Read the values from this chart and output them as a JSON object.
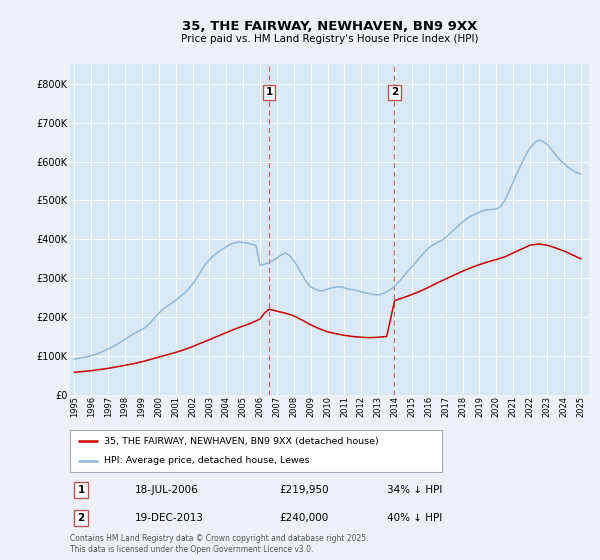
{
  "title": "35, THE FAIRWAY, NEWHAVEN, BN9 9XX",
  "subtitle": "Price paid vs. HM Land Registry's House Price Index (HPI)",
  "ylim": [
    0,
    850000
  ],
  "yticks": [
    0,
    100000,
    200000,
    300000,
    400000,
    500000,
    600000,
    700000,
    800000
  ],
  "ytick_labels": [
    "£0",
    "£100K",
    "£200K",
    "£300K",
    "£400K",
    "£500K",
    "£600K",
    "£700K",
    "£800K"
  ],
  "background_color": "#eef2f8",
  "plot_bg_color": "#d8e8f4",
  "grid_color": "#ffffff",
  "hpi_color": "#90b8d8",
  "price_color": "#cc0000",
  "dashed_line_color": "#cc6666",
  "legend_label_price": "35, THE FAIRWAY, NEWHAVEN, BN9 9XX (detached house)",
  "legend_label_hpi": "HPI: Average price, detached house, Lewes",
  "sale1_label": "1",
  "sale1_date": "18-JUL-2006",
  "sale1_price": "£219,950",
  "sale1_hpi": "34% ↓ HPI",
  "sale2_label": "2",
  "sale2_date": "19-DEC-2013",
  "sale2_price": "£240,000",
  "sale2_hpi": "40% ↓ HPI",
  "footer": "Contains HM Land Registry data © Crown copyright and database right 2025.\nThis data is licensed under the Open Government Licence v3.0.",
  "sale1_x": 2006.54,
  "sale2_x": 2013.96,
  "hpi_x": [
    1995.0,
    1995.25,
    1995.5,
    1995.75,
    1996.0,
    1996.25,
    1996.5,
    1996.75,
    1997.0,
    1997.25,
    1997.5,
    1997.75,
    1998.0,
    1998.25,
    1998.5,
    1998.75,
    1999.0,
    1999.25,
    1999.5,
    1999.75,
    2000.0,
    2000.25,
    2000.5,
    2000.75,
    2001.0,
    2001.25,
    2001.5,
    2001.75,
    2002.0,
    2002.25,
    2002.5,
    2002.75,
    2003.0,
    2003.25,
    2003.5,
    2003.75,
    2004.0,
    2004.25,
    2004.5,
    2004.75,
    2005.0,
    2005.25,
    2005.5,
    2005.75,
    2006.0,
    2006.25,
    2006.5,
    2006.75,
    2007.0,
    2007.25,
    2007.5,
    2007.75,
    2008.0,
    2008.25,
    2008.5,
    2008.75,
    2009.0,
    2009.25,
    2009.5,
    2009.75,
    2010.0,
    2010.25,
    2010.5,
    2010.75,
    2011.0,
    2011.25,
    2011.5,
    2011.75,
    2012.0,
    2012.25,
    2012.5,
    2012.75,
    2013.0,
    2013.25,
    2013.5,
    2013.75,
    2014.0,
    2014.25,
    2014.5,
    2014.75,
    2015.0,
    2015.25,
    2015.5,
    2015.75,
    2016.0,
    2016.25,
    2016.5,
    2016.75,
    2017.0,
    2017.25,
    2017.5,
    2017.75,
    2018.0,
    2018.25,
    2018.5,
    2018.75,
    2019.0,
    2019.25,
    2019.5,
    2019.75,
    2020.0,
    2020.25,
    2020.5,
    2020.75,
    2021.0,
    2021.25,
    2021.5,
    2021.75,
    2022.0,
    2022.25,
    2022.5,
    2022.75,
    2023.0,
    2023.25,
    2023.5,
    2023.75,
    2024.0,
    2024.25,
    2024.5,
    2024.75,
    2025.0
  ],
  "hpi_y": [
    92000,
    94000,
    96000,
    98000,
    101000,
    104000,
    108000,
    113000,
    118000,
    123000,
    129000,
    136000,
    143000,
    150000,
    157000,
    162000,
    168000,
    175000,
    185000,
    198000,
    210000,
    220000,
    228000,
    235000,
    243000,
    252000,
    261000,
    272000,
    285000,
    300000,
    318000,
    335000,
    348000,
    358000,
    367000,
    374000,
    381000,
    387000,
    391000,
    393000,
    392000,
    390000,
    387000,
    384000,
    333000,
    336000,
    340000,
    345000,
    352000,
    360000,
    365000,
    358000,
    345000,
    328000,
    308000,
    290000,
    278000,
    272000,
    268000,
    268000,
    272000,
    275000,
    277000,
    278000,
    275000,
    272000,
    270000,
    268000,
    265000,
    262000,
    260000,
    258000,
    257000,
    260000,
    265000,
    272000,
    280000,
    292000,
    305000,
    318000,
    330000,
    342000,
    355000,
    367000,
    378000,
    386000,
    392000,
    397000,
    405000,
    415000,
    425000,
    435000,
    445000,
    453000,
    460000,
    465000,
    470000,
    474000,
    476000,
    477000,
    478000,
    484000,
    500000,
    524000,
    548000,
    572000,
    596000,
    618000,
    635000,
    648000,
    655000,
    652000,
    645000,
    632000,
    618000,
    605000,
    595000,
    585000,
    578000,
    572000,
    568000
  ],
  "price_x": [
    1995.0,
    1995.5,
    1996.0,
    1996.5,
    1997.0,
    1997.5,
    1998.0,
    1998.5,
    1999.0,
    1999.5,
    2000.0,
    2000.5,
    2001.0,
    2001.5,
    2002.0,
    2002.5,
    2003.0,
    2003.5,
    2004.0,
    2004.5,
    2005.0,
    2005.5,
    2006.0,
    2006.25,
    2006.54,
    2006.75,
    2007.0,
    2007.5,
    2008.0,
    2008.5,
    2009.0,
    2009.5,
    2010.0,
    2010.5,
    2011.0,
    2011.5,
    2012.0,
    2012.5,
    2013.0,
    2013.5,
    2013.96,
    2014.0,
    2014.5,
    2015.0,
    2015.5,
    2016.0,
    2016.5,
    2017.0,
    2017.5,
    2018.0,
    2018.5,
    2019.0,
    2019.5,
    2020.0,
    2020.5,
    2021.0,
    2021.5,
    2022.0,
    2022.5,
    2023.0,
    2023.5,
    2024.0,
    2024.5,
    2025.0
  ],
  "price_y": [
    58000,
    60000,
    62000,
    65000,
    68000,
    72000,
    76000,
    80000,
    85000,
    91000,
    97000,
    103000,
    109000,
    116000,
    124000,
    133000,
    142000,
    151000,
    160000,
    169000,
    177000,
    185000,
    195000,
    210000,
    219950,
    218000,
    215000,
    210000,
    203000,
    192000,
    180000,
    170000,
    162000,
    157000,
    153000,
    150000,
    148000,
    147000,
    148000,
    150000,
    240000,
    243000,
    250000,
    258000,
    267000,
    277000,
    288000,
    298000,
    308000,
    318000,
    327000,
    335000,
    342000,
    348000,
    355000,
    365000,
    375000,
    385000,
    388000,
    385000,
    378000,
    370000,
    360000,
    350000
  ]
}
